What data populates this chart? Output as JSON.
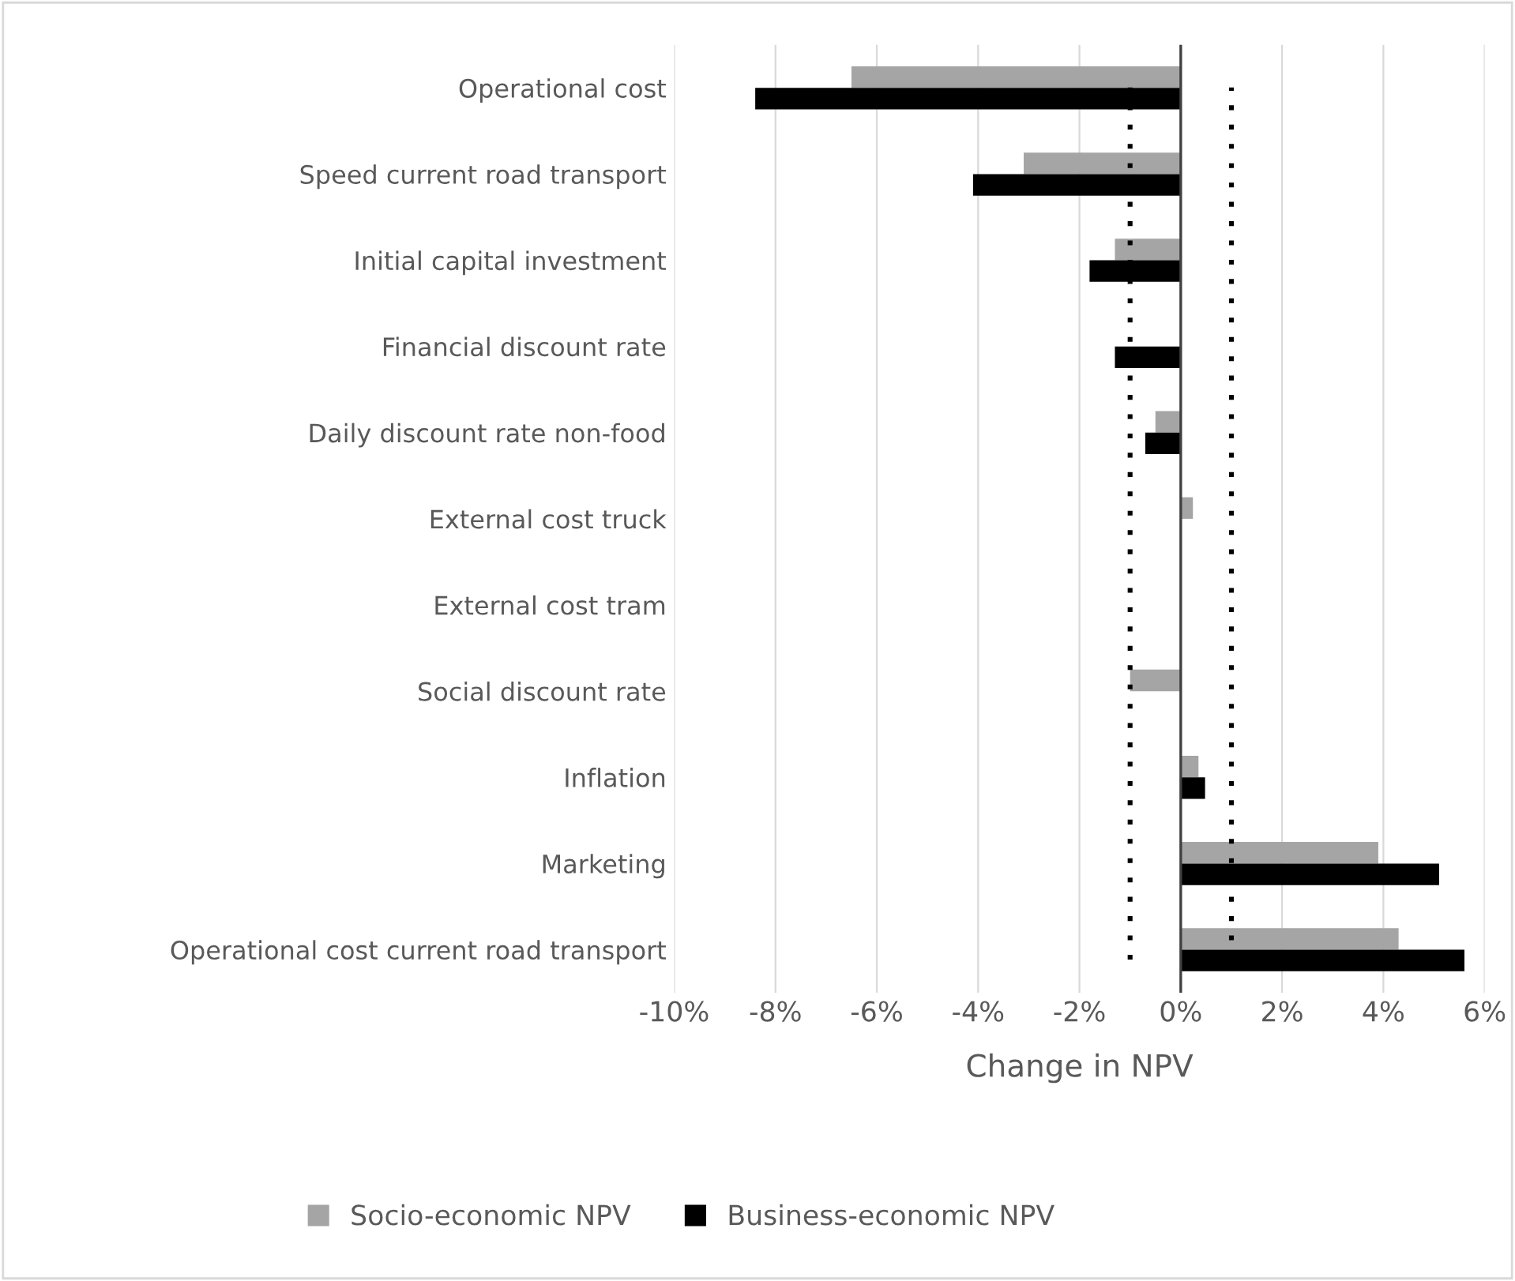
{
  "chart_data": {
    "type": "bar",
    "orientation": "horizontal",
    "xlabel": "Change in NPV",
    "categories": [
      "Operational cost",
      "Speed current road transport",
      "Initial capital investment",
      "Financial discount rate",
      "Daily discount rate non-food",
      "External cost truck",
      "External cost tram",
      "Social discount rate",
      "Inflation",
      "Marketing",
      "Operational cost current road transport"
    ],
    "series": [
      {
        "name": "Socio-economic NPV",
        "color": "#a5a5a5",
        "values": [
          -6.5,
          -3.1,
          -1.3,
          0,
          -0.5,
          0.24,
          null,
          -1.0,
          0.35,
          3.9,
          4.3
        ]
      },
      {
        "name": "Business-economic NPV",
        "color": "#000000",
        "values": [
          -8.4,
          -4.1,
          -1.8,
          -1.3,
          -0.7,
          0,
          0,
          0,
          0.48,
          5.1,
          5.6
        ]
      }
    ],
    "xlim": [
      -10,
      6
    ],
    "xticks": [
      {
        "value": -10,
        "label": "-10%"
      },
      {
        "value": -8,
        "label": "-8%"
      },
      {
        "value": -6,
        "label": "-6%"
      },
      {
        "value": -4,
        "label": "-4%"
      },
      {
        "value": -2,
        "label": "-2%"
      },
      {
        "value": 0,
        "label": "0%"
      },
      {
        "value": 2,
        "label": "2%"
      },
      {
        "value": 4,
        "label": "4%"
      },
      {
        "value": 6,
        "label": "6%"
      }
    ],
    "ref_lines": [
      {
        "axis": "x",
        "value": -1,
        "color": "#000000",
        "line_style": "dotted"
      },
      {
        "axis": "x",
        "value": 1,
        "color": "#000000",
        "line_style": "dotted"
      }
    ],
    "grid": "x",
    "legend": "bottom"
  }
}
